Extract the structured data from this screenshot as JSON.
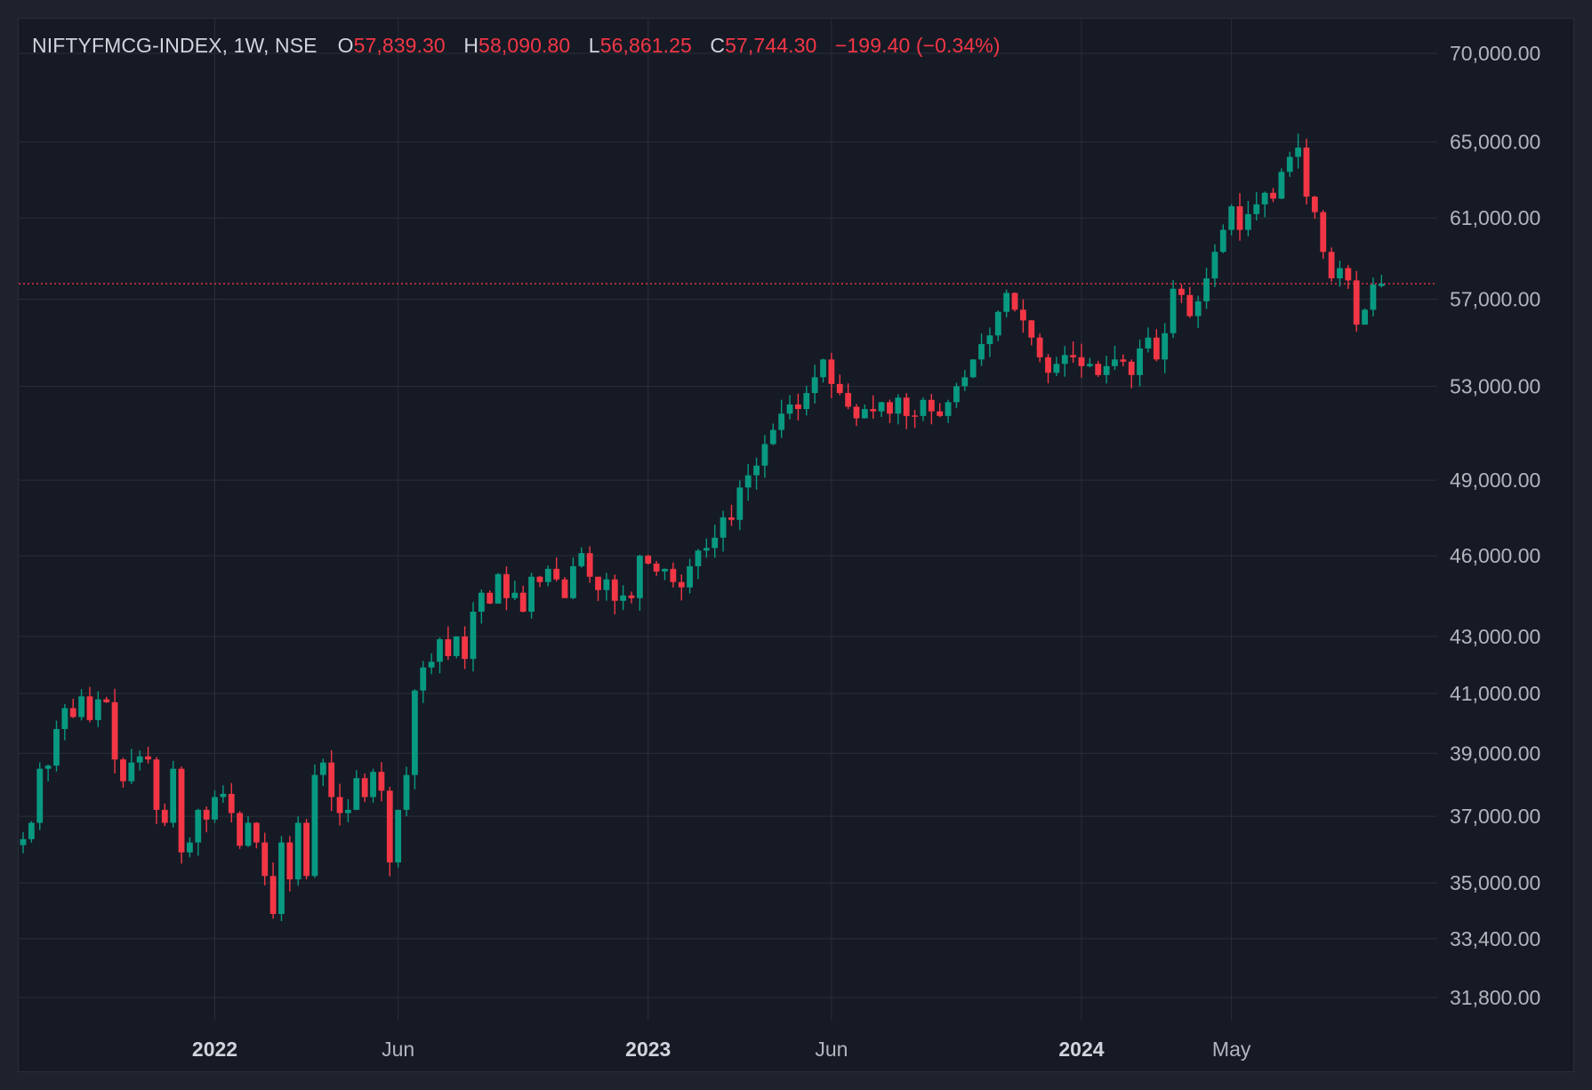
{
  "legend": {
    "symbol": "NIFTYFMCG-INDEX, 1W, NSE",
    "o_label": "O",
    "o_value": "57,839.30",
    "h_label": "H",
    "h_value": "58,090.80",
    "l_label": "L",
    "l_value": "56,861.25",
    "c_label": "C",
    "c_value": "57,744.30",
    "change": "−199.40 (−0.34%)"
  },
  "colors": {
    "up": "#089981",
    "down": "#f23645",
    "grid": "#2a2e39",
    "background": "#161a25",
    "axis_text": "#b2b5be",
    "last_price_line": "#f23645"
  },
  "chart_data": {
    "type": "candlestick",
    "interval": "1W",
    "symbol": "NIFTYFMCG-INDEX",
    "exchange": "NSE",
    "ylim": [
      30500,
      71000
    ],
    "y_scale": "log",
    "y_ticks": [
      "70,000.00",
      "65,000.00",
      "61,000.00",
      "57,000.00",
      "53,000.00",
      "49,000.00",
      "46,000.00",
      "43,000.00",
      "41,000.00",
      "39,000.00",
      "37,000.00",
      "35,000.00",
      "33,400.00",
      "31,800.00"
    ],
    "y_tick_values": [
      70000,
      65000,
      61000,
      57000,
      53000,
      49000,
      46000,
      43000,
      41000,
      39000,
      37000,
      35000,
      33400,
      31800
    ],
    "x_ticks": [
      {
        "label": "2022",
        "bold": true,
        "index": 23
      },
      {
        "label": "Jun",
        "bold": false,
        "index": 45
      },
      {
        "label": "2023",
        "bold": true,
        "index": 75
      },
      {
        "label": "Jun",
        "bold": false,
        "index": 97
      },
      {
        "label": "2024",
        "bold": true,
        "index": 127
      },
      {
        "label": "May",
        "bold": false,
        "index": 145
      }
    ],
    "last_price": 57744.3,
    "grid": true,
    "close_path": [
      36300,
      36800,
      38500,
      38600,
      39800,
      40500,
      40200,
      40900,
      40100,
      40800,
      40700,
      38800,
      38100,
      38700,
      38900,
      38800,
      37200,
      36800,
      38500,
      35900,
      36200,
      37200,
      36900,
      37600,
      37700,
      37100,
      36100,
      36800,
      36200,
      35200,
      34100,
      36200,
      35100,
      36800,
      35200,
      38300,
      38700,
      37600,
      37100,
      37200,
      38200,
      37600,
      38400,
      37800,
      35600,
      37200,
      38300,
      41100,
      41900,
      42100,
      42900,
      42300,
      43000,
      42200,
      43900,
      44600,
      44200,
      45300,
      44400,
      44600,
      43900,
      45200,
      45000,
      45500,
      45100,
      44400,
      45600,
      46100,
      45200,
      44700,
      45100,
      44300,
      44500,
      44400,
      46000,
      45700,
      45400,
      45500,
      45000,
      44800,
      45600,
      46200,
      46300,
      46700,
      47500,
      47400,
      48700,
      49200,
      49600,
      50500,
      51100,
      51800,
      52200,
      52000,
      52700,
      53400,
      54200,
      53100,
      52700,
      52100,
      51600,
      52000,
      51900,
      52300,
      51800,
      52500,
      51700,
      51700,
      52400,
      51900,
      51700,
      52300,
      53000,
      53400,
      54200,
      54900,
      55300,
      56400,
      57300,
      56500,
      56000,
      55200,
      54300,
      53600,
      54000,
      54400,
      54300,
      53900,
      54000,
      53500,
      53900,
      54200,
      54100,
      53500,
      54700,
      55200,
      54200,
      55400,
      57500,
      57200,
      56200,
      56900,
      58000,
      59300,
      60400,
      61600,
      60400,
      61200,
      61700,
      62300,
      62000,
      63400,
      64200,
      64700,
      62100,
      61300,
      59300,
      58000,
      58500,
      57900,
      55800,
      56500,
      57700,
      57744
    ]
  }
}
